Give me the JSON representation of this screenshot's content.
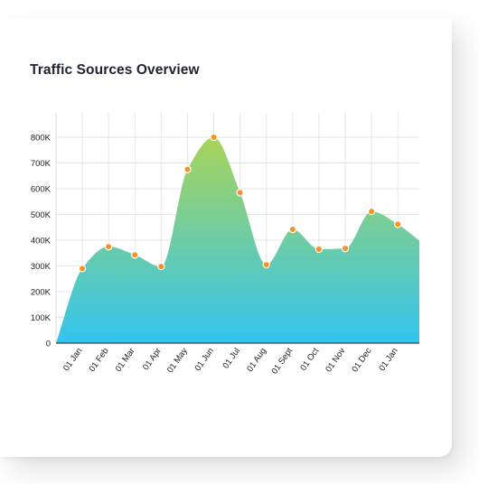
{
  "card": {
    "title": "Traffic Sources Overview"
  },
  "chart_data": {
    "type": "area",
    "title": "Traffic Sources Overview",
    "xlabel": "",
    "ylabel": "",
    "categories": [
      "01 Jan",
      "01 Feb",
      "01 Mar",
      "01 Apr",
      "01 May",
      "01 Jun",
      "01 Jul",
      "01 Aug",
      "01 Sept",
      "01 Oct",
      "01 Nov",
      "01 Dec",
      "01 Jan"
    ],
    "series": [
      {
        "values": [
          290000,
          375000,
          343000,
          298000,
          675000,
          800000,
          585000,
          305000,
          442000,
          365000,
          368000,
          512000,
          462000
        ],
        "start_value": 0,
        "end_value": 398000
      }
    ],
    "yticks": [
      "0",
      "100K",
      "200K",
      "300K",
      "400K",
      "500K",
      "600K",
      "700K",
      "800K"
    ],
    "ylim": [
      0,
      800000
    ],
    "grid": true,
    "legend": "none",
    "colors": {
      "fill_top": "#a8d45a",
      "fill_bottom": "#33c4f0",
      "marker_fill": "#f7931e",
      "marker_stroke": "#ffffff",
      "grid": "#e6e6e6",
      "axis": "#222222"
    }
  }
}
